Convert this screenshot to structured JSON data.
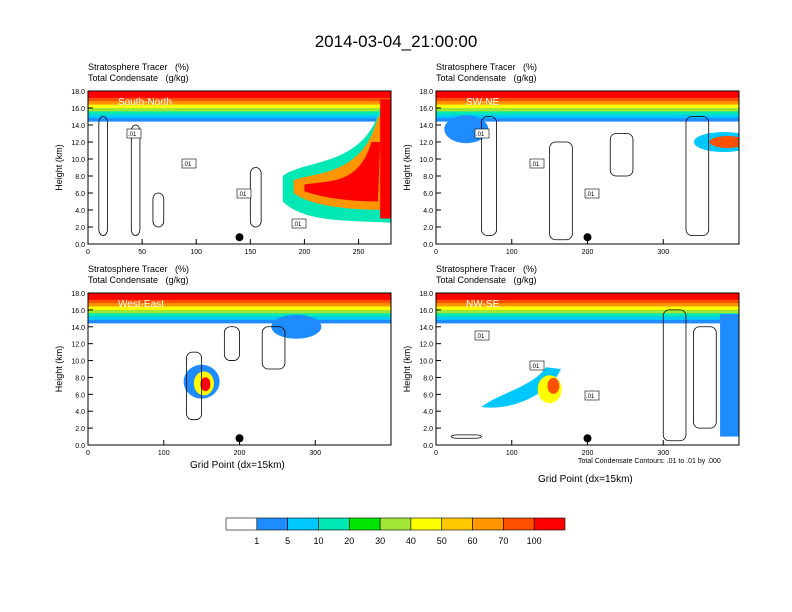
{
  "title": "2014-03-04_21:00:00",
  "contour_note": "Total Condensate Contours: .01 to .01 by .000",
  "colorbar": {
    "labels": [
      "1",
      "5",
      "10",
      "20",
      "30",
      "40",
      "50",
      "60",
      "70",
      "100"
    ],
    "colors": [
      "#ffffff",
      "#1e8cff",
      "#00c8ff",
      "#00e8b4",
      "#00e600",
      "#a0e632",
      "#ffff00",
      "#ffc800",
      "#ff9600",
      "#ff5000",
      "#ff0000"
    ]
  },
  "panels": [
    {
      "tracer_label": "Stratosphere Tracer   (%)",
      "condensate_label": "Total Condensate   (g/kg)",
      "name": "South-North",
      "ylabel": "Height (km)",
      "xlabel": "",
      "xticks": [
        "0",
        "50",
        "100",
        "150",
        "200",
        "250"
      ]
    },
    {
      "tracer_label": "Stratosphere Tracer   (%)",
      "condensate_label": "Total Condensate   (g/kg)",
      "name": "SW-NE",
      "ylabel": "Height (km)",
      "xlabel": "",
      "xticks": [
        "0",
        "100",
        "200",
        "300"
      ]
    },
    {
      "tracer_label": "Stratosphere Tracer   (%)",
      "condensate_label": "Total Condensate   (g/kg)",
      "name": "West-East",
      "ylabel": "Height (km)",
      "xlabel": "Grid Point (dx=15km)",
      "xticks": [
        "0",
        "100",
        "200",
        "300"
      ]
    },
    {
      "tracer_label": "Stratosphere Tracer   (%)",
      "condensate_label": "Total Condensate   (g/kg)",
      "name": "NW-SE",
      "ylabel": "Height (km)",
      "xlabel": "Grid Point (dx=15km)",
      "xticks": [
        "0",
        "100",
        "200",
        "300"
      ]
    }
  ],
  "chart_data": [
    {
      "type": "heatmap",
      "name": "South-North",
      "x_range": [
        0,
        280
      ],
      "ylim": [
        0,
        18
      ],
      "yticks": [
        "0.0",
        "2.0",
        "4.0",
        "6.0",
        "8.0",
        "10.0",
        "12.0",
        "14.0",
        "16.0",
        "18.0"
      ],
      "xticks": [
        0,
        50,
        100,
        150,
        200,
        250
      ],
      "contour_labels": [
        ".01",
        ".01",
        ".01",
        ".01"
      ],
      "marker_x": 140
    },
    {
      "type": "heatmap",
      "name": "SW-NE",
      "x_range": [
        0,
        400
      ],
      "ylim": [
        0,
        18
      ],
      "yticks": [
        "0.0",
        "2.0",
        "4.0",
        "6.0",
        "8.0",
        "10.0",
        "12.0",
        "14.0",
        "16.0",
        "18.0"
      ],
      "xticks": [
        0,
        100,
        200,
        300
      ],
      "contour_labels": [
        ".01",
        ".01",
        ".01"
      ],
      "marker_x": 200
    },
    {
      "type": "heatmap",
      "name": "West-East",
      "x_range": [
        0,
        400
      ],
      "ylim": [
        0,
        18
      ],
      "yticks": [
        "0.0",
        "2.0",
        "4.0",
        "6.0",
        "8.0",
        "10.0",
        "12.0",
        "14.0",
        "16.0",
        "18.0"
      ],
      "xticks": [
        0,
        100,
        200,
        300
      ],
      "contour_labels": [],
      "marker_x": 200
    },
    {
      "type": "heatmap",
      "name": "NW-SE",
      "x_range": [
        0,
        400
      ],
      "ylim": [
        0,
        18
      ],
      "yticks": [
        "0.0",
        "2.0",
        "4.0",
        "6.0",
        "8.0",
        "10.0",
        "12.0",
        "14.0",
        "16.0",
        "18.0"
      ],
      "xticks": [
        0,
        100,
        200,
        300
      ],
      "contour_labels": [
        ".01",
        ".01",
        ".01"
      ],
      "marker_x": 200
    }
  ]
}
